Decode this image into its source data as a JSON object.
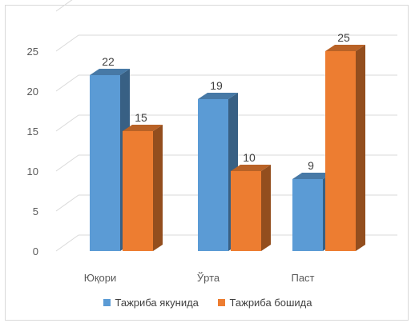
{
  "chart_data": {
    "type": "bar",
    "categories": [
      "Юқори",
      "Ўрта",
      "Паст"
    ],
    "series": [
      {
        "name": "Тажриба якунида",
        "values": [
          22,
          19,
          9
        ],
        "color": "#5b9bd5"
      },
      {
        "name": "Тажриба бошида",
        "values": [
          15,
          10,
          25
        ],
        "color": "#ed7d31"
      }
    ],
    "y_ticks": [
      "0",
      "5",
      "10",
      "15",
      "20",
      "25"
    ],
    "ylim": [
      0,
      30
    ],
    "grid": true,
    "legend_position": "bottom",
    "style": "3d-clustered-column"
  }
}
